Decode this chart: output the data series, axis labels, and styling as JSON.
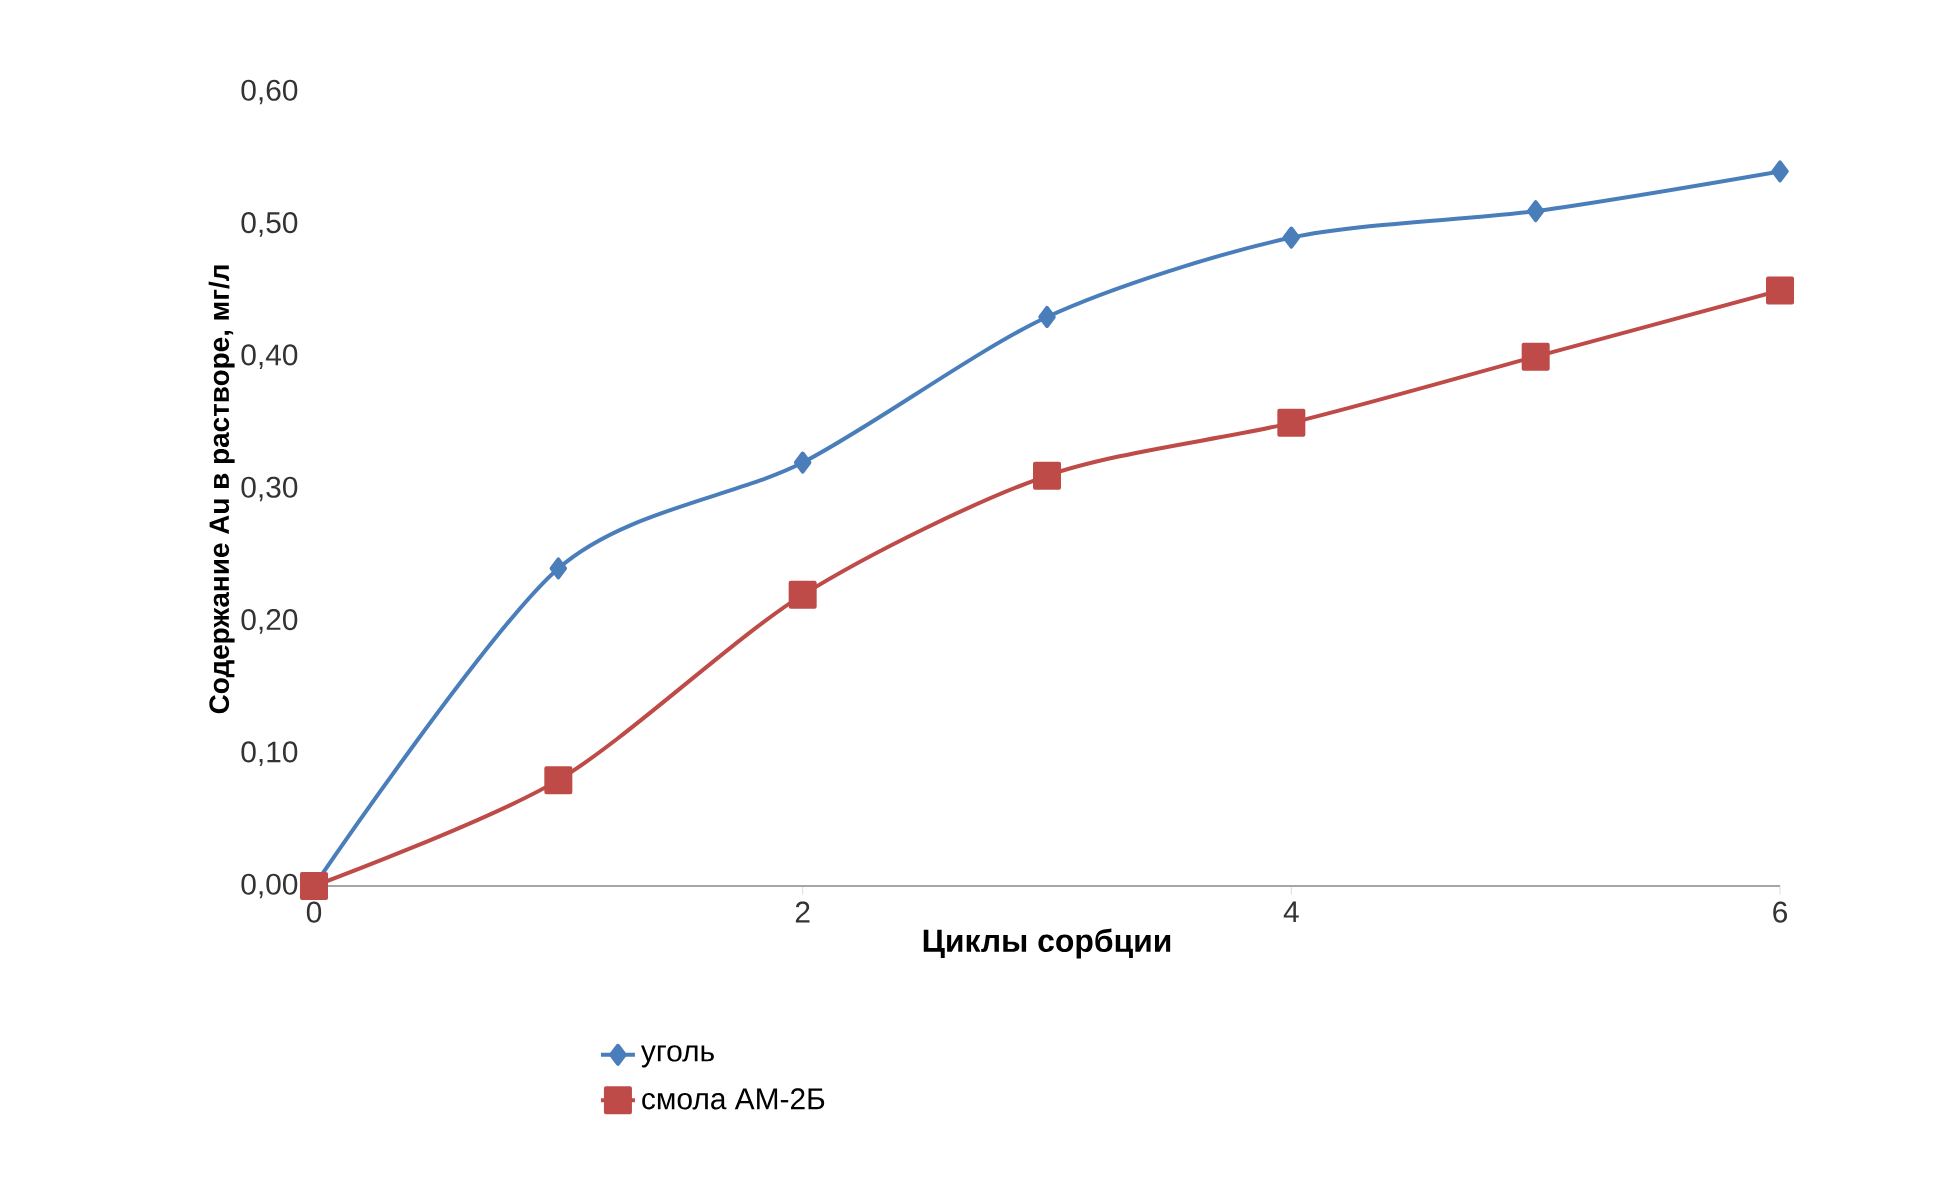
{
  "chart_data": {
    "type": "line",
    "xlabel": "Циклы сорбции",
    "ylabel": "Содержание Au в растворе, мг/л",
    "x": [
      0,
      1,
      2,
      3,
      4,
      5,
      6
    ],
    "series": [
      {
        "name": "уголь",
        "color": "#4a7ebb",
        "marker": "diamond",
        "values": [
          0,
          0.24,
          0.32,
          0.43,
          0.49,
          0.51,
          0.54
        ]
      },
      {
        "name": "смола АМ-2Б",
        "color": "#be4b48",
        "marker": "square",
        "values": [
          0,
          0.08,
          0.22,
          0.31,
          0.35,
          0.4,
          0.45
        ]
      }
    ],
    "xlim": [
      0,
      6
    ],
    "xticks": [
      0,
      2,
      4,
      6
    ],
    "ylim": [
      0,
      0.6
    ],
    "yticks": [
      {
        "value": 0,
        "label": "0,00"
      },
      {
        "value": 0.1,
        "label": "0,10"
      },
      {
        "value": 0.2,
        "label": "0,20"
      },
      {
        "value": 0.3,
        "label": "0,30"
      },
      {
        "value": 0.4,
        "label": "0,40"
      },
      {
        "value": 0.5,
        "label": "0,50"
      },
      {
        "value": 0.6,
        "label": "0,60"
      }
    ],
    "grid": false,
    "legend": "bottom"
  }
}
